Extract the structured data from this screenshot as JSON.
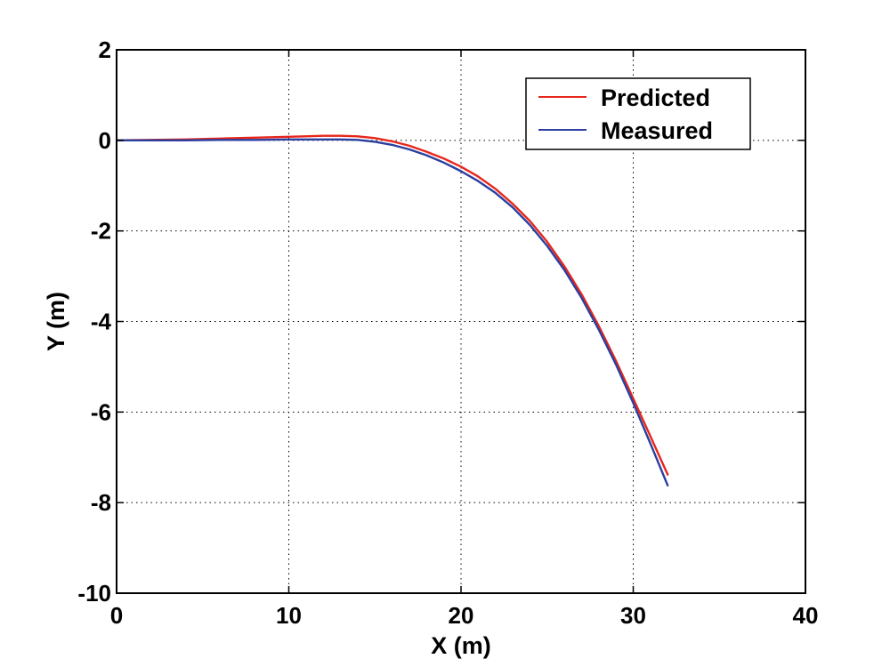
{
  "chart_data": {
    "type": "line",
    "title": "",
    "xlabel": "X (m)",
    "ylabel": "Y (m)",
    "xlim": [
      0,
      40
    ],
    "ylim": [
      -10,
      2
    ],
    "xticks": [
      0,
      10,
      20,
      30,
      40
    ],
    "yticks": [
      2,
      0,
      -2,
      -4,
      -6,
      -8,
      -10
    ],
    "grid": true,
    "legend": "top-right",
    "series": [
      {
        "name": "Predicted",
        "color": "#e8261b",
        "x": [
          0,
          2,
          4,
          6,
          8,
          10,
          12,
          13,
          14,
          15,
          16,
          17,
          18,
          19,
          20,
          21,
          22,
          23,
          24,
          25,
          26,
          27,
          28,
          29,
          30,
          31,
          32
        ],
        "y": [
          0,
          0.01,
          0.02,
          0.04,
          0.06,
          0.08,
          0.1,
          0.1,
          0.09,
          0.05,
          -0.02,
          -0.12,
          -0.25,
          -0.4,
          -0.58,
          -0.8,
          -1.07,
          -1.4,
          -1.78,
          -2.24,
          -2.78,
          -3.4,
          -4.1,
          -4.87,
          -5.7,
          -6.54,
          -7.38
        ]
      },
      {
        "name": "Measured",
        "color": "#2a3fa0",
        "x": [
          0,
          2,
          4,
          6,
          8,
          10,
          12,
          13,
          14,
          15,
          16,
          17,
          18,
          19,
          20,
          21,
          22,
          23,
          24,
          25,
          26,
          27,
          28,
          29,
          30,
          31,
          32
        ],
        "y": [
          0,
          0,
          0,
          0.01,
          0.01,
          0.02,
          0.02,
          0.02,
          0.01,
          -0.03,
          -0.1,
          -0.2,
          -0.33,
          -0.49,
          -0.68,
          -0.9,
          -1.16,
          -1.48,
          -1.87,
          -2.33,
          -2.86,
          -3.48,
          -4.18,
          -4.95,
          -5.8,
          -6.7,
          -7.62
        ]
      }
    ]
  }
}
